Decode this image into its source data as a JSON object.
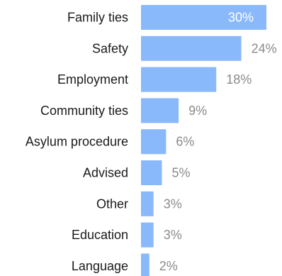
{
  "chart_data": {
    "type": "bar",
    "orientation": "horizontal",
    "categories": [
      "Family ties",
      "Safety",
      "Employment",
      "Community ties",
      "Asylum procedure",
      "Advised",
      "Other",
      "Education",
      "Language"
    ],
    "values": [
      30,
      24,
      18,
      9,
      6,
      5,
      3,
      3,
      2
    ],
    "value_labels": [
      "30%",
      "24%",
      "18%",
      "9%",
      "6%",
      "5%",
      "3%",
      "3%",
      "2%"
    ],
    "unit": "%",
    "xlim": [
      0,
      30
    ],
    "grid": false,
    "legend": "none",
    "colors": {
      "bar": "#8ab9fb",
      "label_inside": "#ffffff",
      "label_outside": "#8a8a8a",
      "category_text": "#1a1a1a"
    }
  }
}
